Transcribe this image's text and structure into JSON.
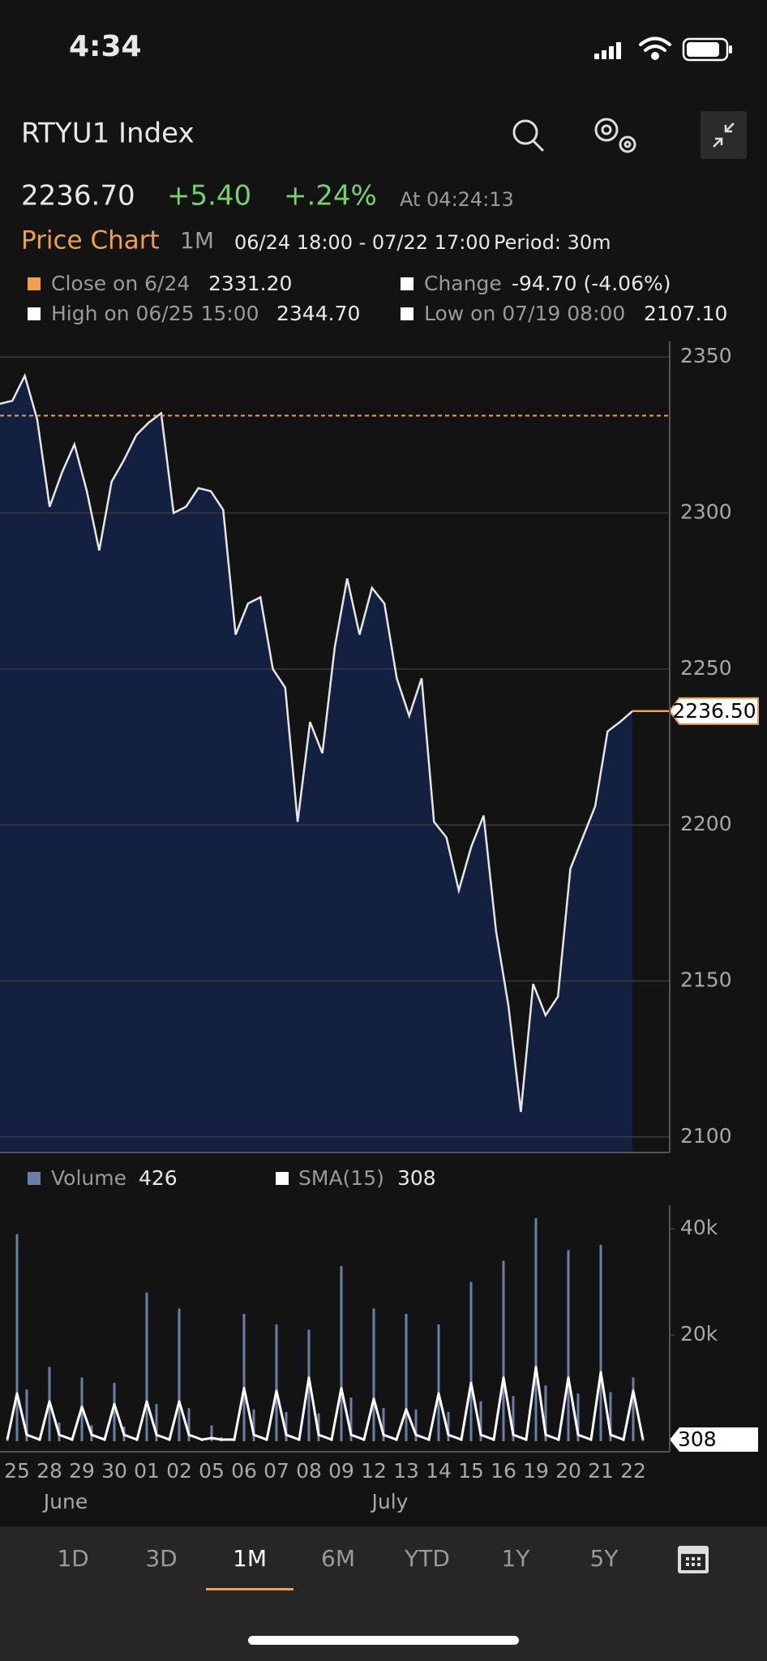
{
  "status_bar": {
    "time": "4:34"
  },
  "header": {
    "title": "RTYU1 Index",
    "price": "2236.70",
    "change": "+5.40",
    "change_pct": "+.24%",
    "time": "At 04:24:13"
  },
  "chart_info": {
    "title": "Price Chart",
    "range": "1M",
    "dates": "06/24 18:00 - 07/22 17:00",
    "period": "Period: 30m"
  },
  "legend": {
    "close_label": "Close on 6/24",
    "change_label": "Change",
    "change_value": "-94.70 (-4.06%)",
    "high_label": "High on 06/25 15:00",
    "high_value": "2344.70",
    "low_label": "Low on 07/19 08:00",
    "low_value": "2107.10"
  },
  "chart_data": [
    {
      "type": "area",
      "color": "#e6e6e6",
      "fill": "#13203f",
      "values": [
        2335,
        2336,
        2344,
        2330,
        2302,
        2313,
        2322,
        2307,
        2288,
        2310,
        2317,
        2325,
        2329,
        2332,
        2300,
        2302,
        2308,
        2307,
        2301,
        2261,
        2271,
        2273,
        2250,
        2244,
        2201,
        2233,
        2223,
        2257,
        2279,
        2261,
        2276,
        2271,
        2247,
        2235,
        2247,
        2201,
        2196,
        2179,
        2193,
        2203,
        2166,
        2142,
        2108,
        2149,
        2139,
        2145,
        2186,
        2196,
        2206,
        2230,
        2233,
        2236.5
      ],
      "ylim": [
        2095,
        2355
      ],
      "yticks": [
        2100,
        2150,
        2200,
        2250,
        2300,
        2350
      ],
      "grid": true,
      "reference_line": {
        "value": 2331.2,
        "label": "2331.20"
      },
      "reference_color": "#f0a04b",
      "last_value": {
        "value": 2236.5,
        "label": "2236.50"
      }
    },
    {
      "type": "bar",
      "categories": [
        null,
        "25",
        null,
        null,
        "28",
        null,
        null,
        "29",
        null,
        null,
        "30",
        null,
        null,
        "01",
        null,
        null,
        "02",
        null,
        null,
        "05",
        null,
        null,
        "06",
        null,
        null,
        "07",
        null,
        null,
        "08",
        null,
        null,
        "09",
        null,
        null,
        "12",
        null,
        null,
        "13",
        null,
        null,
        "14",
        null,
        null,
        "15",
        null,
        null,
        "16",
        null,
        null,
        "19",
        null,
        null,
        "20",
        null,
        null,
        "21",
        null,
        null,
        "22",
        null
      ],
      "series": [
        {
          "name": "Volume",
          "color": "#6b7fa5",
          "values": [
            600,
            39000,
            9750,
            600,
            14000,
            3500,
            600,
            12000,
            3000,
            600,
            11000,
            2750,
            600,
            28000,
            7000,
            600,
            25000,
            6250,
            400,
            3000,
            750,
            600,
            24000,
            6000,
            600,
            22000,
            5500,
            600,
            21000,
            5250,
            600,
            33000,
            8250,
            600,
            25000,
            6250,
            600,
            24000,
            6000,
            600,
            22000,
            5500,
            600,
            30000,
            7500,
            600,
            34000,
            8500,
            600,
            42000,
            10500,
            600,
            36000,
            9000,
            600,
            37000,
            9250,
            600,
            12000,
            426
          ]
        },
        {
          "name": "SMA(15)",
          "color": "#ffffff",
          "values": [
            300,
            9000,
            1200,
            300,
            7500,
            1200,
            300,
            6500,
            1200,
            300,
            7000,
            1200,
            300,
            7500,
            1200,
            300,
            7500,
            1200,
            300,
            600,
            300,
            300,
            10000,
            1200,
            300,
            9500,
            1200,
            300,
            12000,
            1200,
            300,
            10000,
            1200,
            300,
            8000,
            1200,
            300,
            6000,
            1200,
            300,
            9000,
            1200,
            300,
            11000,
            1200,
            300,
            12000,
            1200,
            300,
            14000,
            1200,
            300,
            12000,
            1200,
            300,
            13000,
            1200,
            300,
            9500,
            308
          ]
        }
      ],
      "ylim": [
        0,
        44000
      ],
      "yticks": [
        {
          "value": 20000,
          "label": "20k"
        },
        {
          "value": 40000,
          "label": "40k"
        }
      ],
      "month_labels": [
        "June",
        "July"
      ]
    }
  ],
  "tabs": [
    "1D",
    "3D",
    "1M",
    "6M",
    "YTD",
    "1Y",
    "5Y"
  ],
  "active_tab": "1M"
}
